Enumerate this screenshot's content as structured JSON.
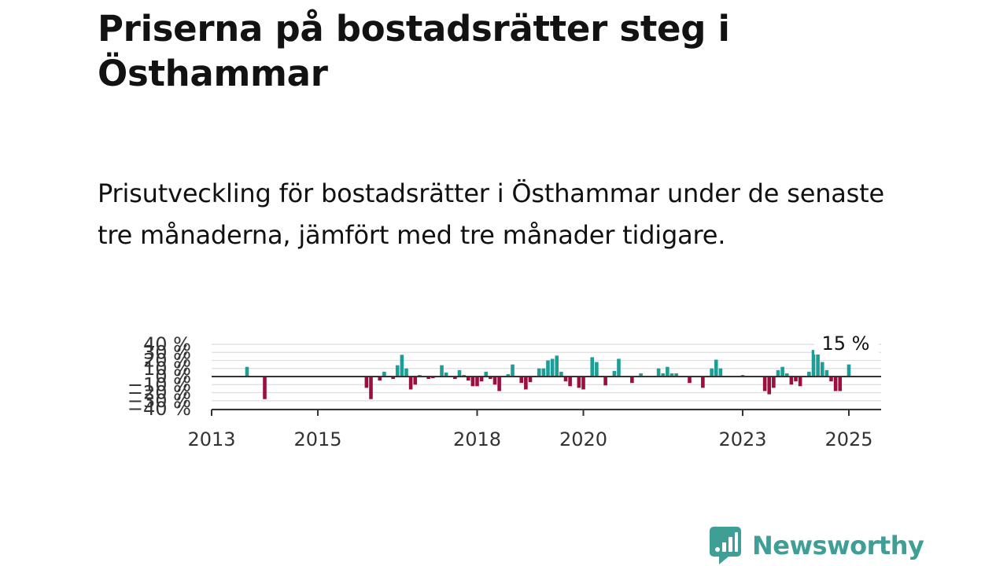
{
  "header": {
    "title": "Priserna på bostadsrätter steg i Östhammar",
    "subtitle": "Prisutveckling för bostadsrätter i Östhammar under de senaste tre månaderna, jämfört med tre månader tidigare."
  },
  "brand": {
    "name": "Newsworthy",
    "icon": "newsworthy-logo-icon",
    "color": "#3f9e96"
  },
  "colors": {
    "positive": "#1a9e96",
    "negative": "#9c0e3f",
    "zero_line": "#333333",
    "grid": "#dddddd"
  },
  "chart_data": {
    "type": "bar",
    "title": "",
    "xlabel": "",
    "ylabel": "",
    "ylim": [
      -40,
      40
    ],
    "y_ticks": [
      {
        "value": 40,
        "label": "40 %"
      },
      {
        "value": 30,
        "label": "30 %"
      },
      {
        "value": 20,
        "label": "20 %"
      },
      {
        "value": 10,
        "label": "10 %"
      },
      {
        "value": 0,
        "label": "0 %"
      },
      {
        "value": -10,
        "label": "−10 %"
      },
      {
        "value": -20,
        "label": "−20 %"
      },
      {
        "value": -30,
        "label": "−30 %"
      },
      {
        "value": -40,
        "label": "−40 %"
      }
    ],
    "x_ticks": [
      {
        "date": "2013-01",
        "label": "2013"
      },
      {
        "date": "2015-01",
        "label": "2015"
      },
      {
        "date": "2018-01",
        "label": "2018"
      },
      {
        "date": "2020-01",
        "label": "2020"
      },
      {
        "date": "2023-01",
        "label": "2023"
      },
      {
        "date": "2025-01",
        "label": "2025"
      }
    ],
    "x_range": [
      "2013-01",
      "2025-08"
    ],
    "grid": true,
    "annotation": {
      "date": "2025-01",
      "label": "15 %"
    },
    "series": [
      {
        "points": [
          {
            "date": "2013-09",
            "value": 12
          },
          {
            "date": "2014-01",
            "value": -28
          },
          {
            "date": "2015-12",
            "value": -14
          },
          {
            "date": "2016-01",
            "value": -28
          },
          {
            "date": "2016-03",
            "value": -5
          },
          {
            "date": "2016-04",
            "value": 6
          },
          {
            "date": "2016-06",
            "value": -3
          },
          {
            "date": "2016-07",
            "value": 14
          },
          {
            "date": "2016-08",
            "value": 27
          },
          {
            "date": "2016-09",
            "value": 10
          },
          {
            "date": "2016-10",
            "value": -16
          },
          {
            "date": "2016-11",
            "value": -10
          },
          {
            "date": "2016-12",
            "value": 2
          },
          {
            "date": "2017-02",
            "value": -3
          },
          {
            "date": "2017-03",
            "value": -2
          },
          {
            "date": "2017-05",
            "value": 14
          },
          {
            "date": "2017-06",
            "value": 5
          },
          {
            "date": "2017-08",
            "value": -3
          },
          {
            "date": "2017-09",
            "value": 8
          },
          {
            "date": "2017-10",
            "value": 2
          },
          {
            "date": "2017-11",
            "value": -5
          },
          {
            "date": "2017-12",
            "value": -12
          },
          {
            "date": "2018-01",
            "value": -12
          },
          {
            "date": "2018-02",
            "value": -6
          },
          {
            "date": "2018-03",
            "value": 6
          },
          {
            "date": "2018-04",
            "value": -3
          },
          {
            "date": "2018-05",
            "value": -10
          },
          {
            "date": "2018-06",
            "value": -18
          },
          {
            "date": "2018-08",
            "value": 3
          },
          {
            "date": "2018-09",
            "value": 15
          },
          {
            "date": "2018-11",
            "value": -8
          },
          {
            "date": "2018-12",
            "value": -16
          },
          {
            "date": "2019-01",
            "value": -7
          },
          {
            "date": "2019-03",
            "value": 10
          },
          {
            "date": "2019-04",
            "value": 10
          },
          {
            "date": "2019-05",
            "value": 20
          },
          {
            "date": "2019-06",
            "value": 22
          },
          {
            "date": "2019-07",
            "value": 26
          },
          {
            "date": "2019-08",
            "value": 6
          },
          {
            "date": "2019-09",
            "value": -6
          },
          {
            "date": "2019-10",
            "value": -12
          },
          {
            "date": "2019-12",
            "value": -14
          },
          {
            "date": "2020-01",
            "value": -16
          },
          {
            "date": "2020-03",
            "value": 24
          },
          {
            "date": "2020-04",
            "value": 18
          },
          {
            "date": "2020-06",
            "value": -11
          },
          {
            "date": "2020-08",
            "value": 7
          },
          {
            "date": "2020-09",
            "value": 22
          },
          {
            "date": "2020-12",
            "value": -8
          },
          {
            "date": "2021-02",
            "value": 4
          },
          {
            "date": "2021-06",
            "value": 10
          },
          {
            "date": "2021-07",
            "value": 4
          },
          {
            "date": "2021-08",
            "value": 12
          },
          {
            "date": "2021-09",
            "value": 4
          },
          {
            "date": "2021-10",
            "value": 4
          },
          {
            "date": "2022-01",
            "value": -8
          },
          {
            "date": "2022-04",
            "value": -14
          },
          {
            "date": "2022-06",
            "value": 10
          },
          {
            "date": "2022-07",
            "value": 21
          },
          {
            "date": "2022-08",
            "value": 10
          },
          {
            "date": "2023-01",
            "value": 2
          },
          {
            "date": "2023-06",
            "value": -18
          },
          {
            "date": "2023-07",
            "value": -22
          },
          {
            "date": "2023-08",
            "value": -14
          },
          {
            "date": "2023-09",
            "value": 8
          },
          {
            "date": "2023-10",
            "value": 12
          },
          {
            "date": "2023-11",
            "value": 4
          },
          {
            "date": "2023-12",
            "value": -10
          },
          {
            "date": "2024-01",
            "value": -6
          },
          {
            "date": "2024-02",
            "value": -12
          },
          {
            "date": "2024-04",
            "value": 6
          },
          {
            "date": "2024-05",
            "value": 33
          },
          {
            "date": "2024-06",
            "value": 30
          },
          {
            "date": "2024-07",
            "value": 18
          },
          {
            "date": "2024-08",
            "value": 8
          },
          {
            "date": "2024-09",
            "value": -6
          },
          {
            "date": "2024-10",
            "value": -18
          },
          {
            "date": "2024-11",
            "value": -18
          },
          {
            "date": "2025-01",
            "value": 15
          }
        ]
      }
    ]
  }
}
